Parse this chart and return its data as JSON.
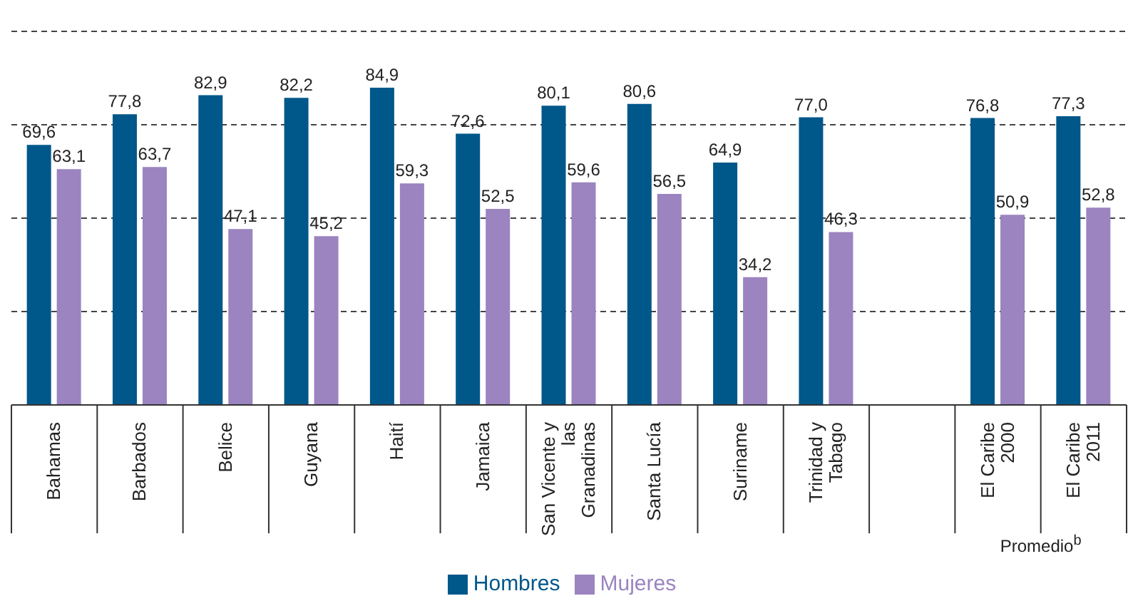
{
  "chart_data": {
    "type": "bar",
    "categories": [
      "Bahamas",
      "Barbados",
      "Belice",
      "Guyana",
      "Haití",
      "Jamaica",
      "San Vicente y las Granadinas",
      "Santa Lucía",
      "Suriname",
      "Trinidad y Tabago",
      null,
      "El Caribe 2000",
      "El Caribe 2011"
    ],
    "series": [
      {
        "name": "Hombres",
        "color": "#00578a",
        "values": [
          69.6,
          77.8,
          82.9,
          82.2,
          84.9,
          72.6,
          80.1,
          80.6,
          64.9,
          77.0,
          null,
          76.8,
          77.3
        ],
        "value_labels": [
          "69,6",
          "77,8",
          "82,9",
          "82,2",
          "84,9",
          "72,6",
          "80,1",
          "80,6",
          "64,9",
          "77,0",
          null,
          "76,8",
          "77,3"
        ]
      },
      {
        "name": "Mujeres",
        "color": "#9b84c0",
        "values": [
          63.1,
          63.7,
          47.1,
          45.2,
          59.3,
          52.5,
          59.6,
          56.5,
          34.2,
          46.3,
          null,
          50.9,
          52.8
        ],
        "value_labels": [
          "63,1",
          "63,7",
          "47,1",
          "45,2",
          "59,3",
          "52,5",
          "59,6",
          "56,5",
          "34,2",
          "46,3",
          null,
          "50,9",
          "52,8"
        ]
      }
    ],
    "tick_labels": "x",
    "grid": "y",
    "legend": "bottom",
    "annotations": [
      "Promedio$^{b}$"
    ]
  }
}
